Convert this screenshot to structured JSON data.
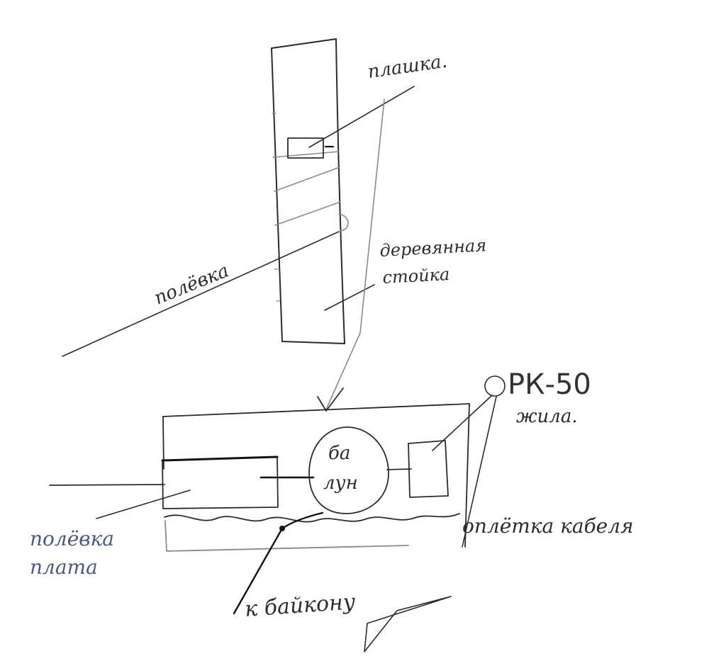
{
  "labels": {
    "plashka": "плашка.",
    "polevka": "полёвка",
    "stoyka_line1": "деревянная",
    "stoyka_line2": "стойка",
    "rk50": "РК-50",
    "zhila": "жила.",
    "balun_line1": "ба",
    "balun_line2": "лун",
    "opletka": "оплётка кабеля",
    "polevka_plate_line1": "полёвка",
    "polevka_plate_line2": "плата",
    "k_baiconu": "к байкону"
  },
  "colors": {
    "ink": "#2b2b2b",
    "pencil": "#8a8a8a",
    "blue_ink": "#4a5a7e"
  }
}
